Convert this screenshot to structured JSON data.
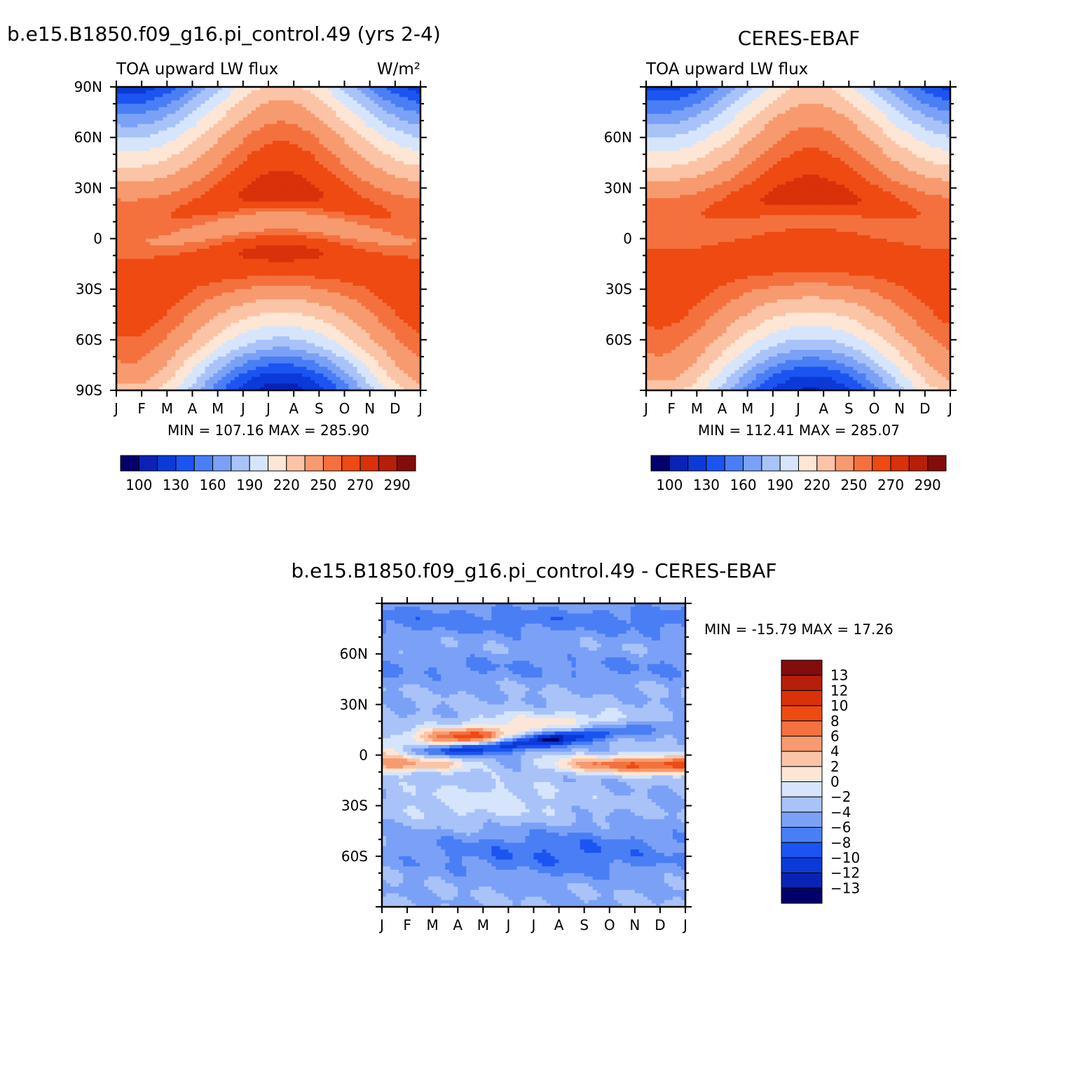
{
  "chart_data": [
    {
      "type": "heatmap",
      "title": "b.e15.B1850.f09_g16.pi_control.49 (yrs 2-4)",
      "subtitle": "TOA upward LW flux",
      "units": "W/m²",
      "x_ticks": [
        "J",
        "F",
        "M",
        "A",
        "M",
        "J",
        "J",
        "A",
        "S",
        "O",
        "N",
        "D",
        "J"
      ],
      "y_ticks": [
        "90N",
        "60N",
        "30N",
        "0",
        "30S",
        "60S",
        "90S"
      ],
      "ylim": [
        -90,
        90
      ],
      "stats": "MIN = 107.16 MAX = 285.90",
      "min": 107.16,
      "max": 285.9,
      "colorbar_labels": [
        "100",
        "130",
        "160",
        "190",
        "220",
        "250",
        "270",
        "290"
      ],
      "colorbar_colors": [
        "#03006b",
        "#0a23b4",
        "#0b3ad8",
        "#1c54f2",
        "#4a7ef5",
        "#7ba1f7",
        "#a9c3f9",
        "#d6e5fb",
        "#fde6d6",
        "#fbc4a6",
        "#f79a6f",
        "#f4713e",
        "#ee4a12",
        "#d9310a",
        "#b61f0a",
        "#830d0d"
      ],
      "field": "lw_model"
    },
    {
      "type": "heatmap",
      "title": "CERES-EBAF",
      "subtitle": "TOA upward LW flux",
      "x_ticks": [
        "J",
        "F",
        "M",
        "A",
        "M",
        "J",
        "J",
        "A",
        "S",
        "O",
        "N",
        "D",
        "J"
      ],
      "y_ticks": [
        "",
        "60N",
        "30N",
        "0",
        "30S",
        "60S",
        ""
      ],
      "ylim": [
        -90,
        90
      ],
      "stats": "MIN = 112.41 MAX = 285.07",
      "min": 112.41,
      "max": 285.07,
      "colorbar_labels": [
        "100",
        "130",
        "160",
        "190",
        "220",
        "250",
        "270",
        "290"
      ],
      "colorbar_colors": [
        "#03006b",
        "#0a23b4",
        "#0b3ad8",
        "#1c54f2",
        "#4a7ef5",
        "#7ba1f7",
        "#a9c3f9",
        "#d6e5fb",
        "#fde6d6",
        "#fbc4a6",
        "#f79a6f",
        "#f4713e",
        "#ee4a12",
        "#d9310a",
        "#b61f0a",
        "#830d0d"
      ],
      "field": "lw_obs"
    },
    {
      "type": "heatmap",
      "title": "b.e15.B1850.f09_g16.pi_control.49 - CERES-EBAF",
      "x_ticks": [
        "J",
        "F",
        "M",
        "A",
        "M",
        "J",
        "J",
        "A",
        "S",
        "O",
        "N",
        "D",
        "J"
      ],
      "y_ticks": [
        "",
        "60N",
        "30N",
        "0",
        "30S",
        "60S",
        ""
      ],
      "ylim": [
        -90,
        90
      ],
      "stats": "MIN = -15.79 MAX =  17.26",
      "min": -15.79,
      "max": 17.26,
      "colorbar_labels": [
        "13",
        "12",
        "10",
        "8",
        "6",
        "4",
        "2",
        "0",
        "-2",
        "-4",
        "-6",
        "-8",
        "-10",
        "-12",
        "-13"
      ],
      "colorbar_colors": [
        "#830d0d",
        "#b61f0a",
        "#d9310a",
        "#ee4a12",
        "#f4713e",
        "#f79a6f",
        "#fbc4a6",
        "#fde6d6",
        "#d6e5fb",
        "#a9c3f9",
        "#7ba1f7",
        "#4a7ef5",
        "#1c54f2",
        "#0b3ad8",
        "#0a23b4",
        "#03006b"
      ],
      "field": "diff"
    }
  ]
}
